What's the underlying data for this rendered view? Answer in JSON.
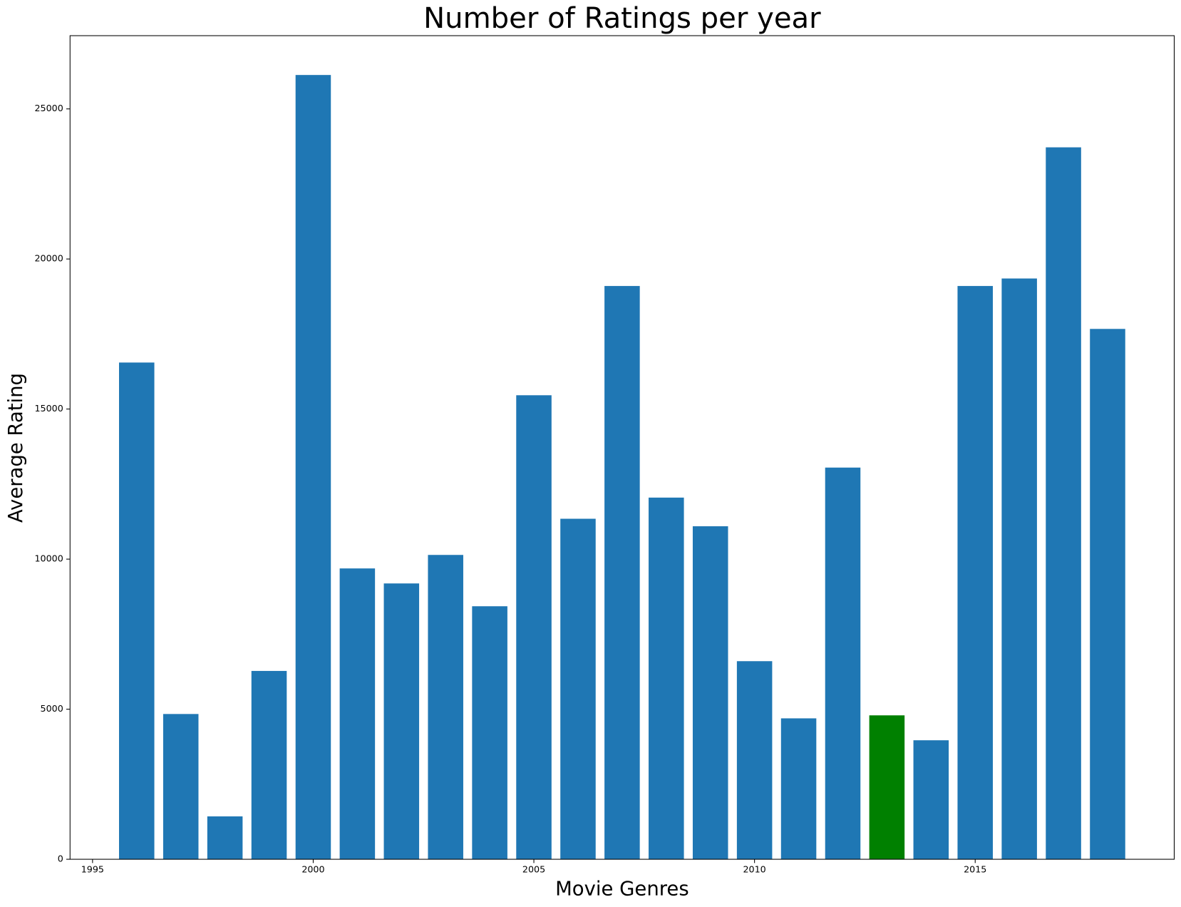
{
  "chart_data": {
    "type": "bar",
    "title": "Number of Ratings per year",
    "x_label": "Movie Genres",
    "y_label": "Average Rating",
    "x": [
      1996,
      1997,
      1998,
      1999,
      2000,
      2001,
      2002,
      2003,
      2004,
      2005,
      2006,
      2007,
      2008,
      2009,
      2010,
      2011,
      2012,
      2013,
      2014,
      2015,
      2016,
      2017,
      2018
    ],
    "values": [
      16550,
      4840,
      1430,
      6275,
      26130,
      9690,
      9190,
      10140,
      8430,
      15460,
      11345,
      19100,
      12050,
      11095,
      6600,
      4695,
      13050,
      4795,
      3965,
      19100,
      19350,
      23720,
      17670
    ],
    "colors": [
      "#1f77b4",
      "#1f77b4",
      "#1f77b4",
      "#1f77b4",
      "#1f77b4",
      "#1f77b4",
      "#1f77b4",
      "#1f77b4",
      "#1f77b4",
      "#1f77b4",
      "#1f77b4",
      "#1f77b4",
      "#1f77b4",
      "#1f77b4",
      "#1f77b4",
      "#1f77b4",
      "#1f77b4",
      "#008000",
      "#1f77b4",
      "#1f77b4",
      "#1f77b4",
      "#1f77b4",
      "#1f77b4"
    ],
    "bar_width": 0.8,
    "xlim": [
      1994.49,
      2019.51
    ],
    "xticks": [
      1995,
      2000,
      2005,
      2010,
      2015
    ],
    "ylim": [
      0,
      27440
    ],
    "yticks": [
      0,
      5000,
      10000,
      15000,
      20000,
      25000
    ],
    "grid": false
  }
}
